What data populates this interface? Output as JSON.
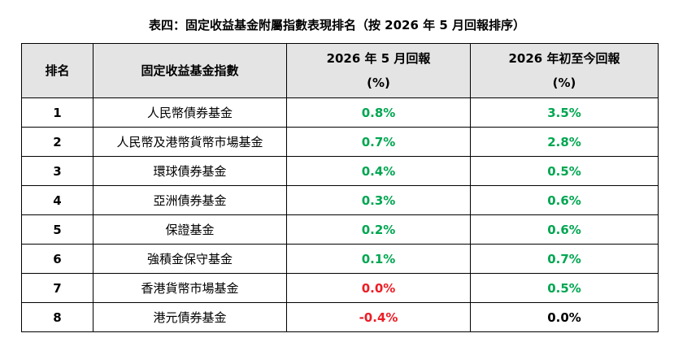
{
  "title": "表四：固定收益基金附屬指數表現排名（按 2026 年 5 月回報排序）",
  "headers": {
    "rank": "排名",
    "index": "固定收益基金指數",
    "may_line1": "2026 年 5 月回報",
    "may_line2": "(%)",
    "ytd_line1": "2026 年初至今回報",
    "ytd_line2": "(%)"
  },
  "colors": {
    "positive": "#00a651",
    "negative": "#ee1c25",
    "neutral": "#000000",
    "header_bg": "#e4e4e4"
  },
  "rows": [
    {
      "rank": "1",
      "name": "人民幣債券基金",
      "may": "0.8%",
      "ytd": "3.5%",
      "may_color": "green",
      "ytd_color": "green"
    },
    {
      "rank": "2",
      "name": "人民幣及港幣貨幣市場基金",
      "may": "0.7%",
      "ytd": "2.8%",
      "may_color": "green",
      "ytd_color": "green"
    },
    {
      "rank": "3",
      "name": "環球債券基金",
      "may": "0.4%",
      "ytd": "0.5%",
      "may_color": "green",
      "ytd_color": "green"
    },
    {
      "rank": "4",
      "name": "亞洲債券基金",
      "may": "0.3%",
      "ytd": "0.6%",
      "may_color": "green",
      "ytd_color": "green"
    },
    {
      "rank": "5",
      "name": "保證基金",
      "may": "0.2%",
      "ytd": "0.6%",
      "may_color": "green",
      "ytd_color": "green"
    },
    {
      "rank": "6",
      "name": "強積金保守基金",
      "may": "0.1%",
      "ytd": "0.7%",
      "may_color": "green",
      "ytd_color": "green"
    },
    {
      "rank": "7",
      "name": "香港貨幣市場基金",
      "may": "0.0%",
      "ytd": "0.5%",
      "may_color": "red",
      "ytd_color": "green"
    },
    {
      "rank": "8",
      "name": "港元債券基金",
      "may": "-0.4%",
      "ytd": "0.0%",
      "may_color": "red",
      "ytd_color": "black"
    }
  ]
}
